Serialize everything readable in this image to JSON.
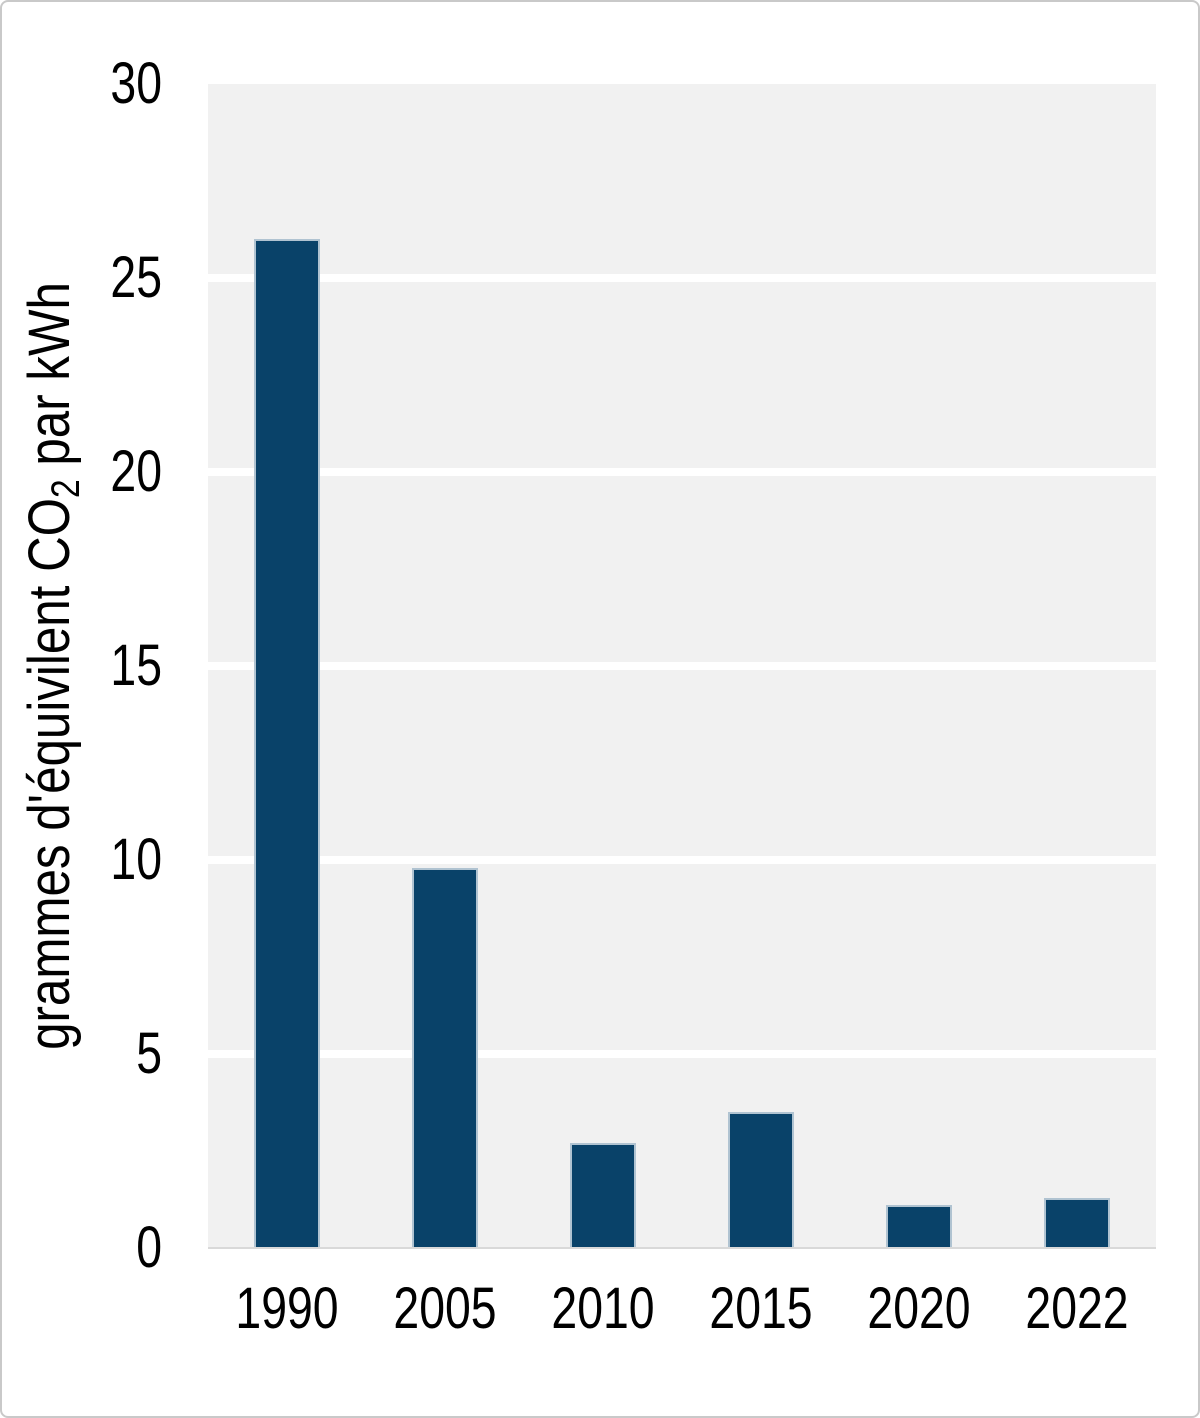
{
  "frame": {
    "background": "#ffffff",
    "border_color": "#c9c9c9"
  },
  "chart_data": {
    "type": "bar",
    "categories": [
      "1990",
      "2005",
      "2010",
      "2015",
      "2020",
      "2022"
    ],
    "values": [
      26,
      9.8,
      2.7,
      3.5,
      1.1,
      1.3
    ],
    "title": "",
    "xlabel": "",
    "ylabel": "grammes d'équivilent CO2 par kWh",
    "ylabel_parts": {
      "prefix": "grammes d'équivilent CO",
      "subscript": "2",
      "suffix": " par kWh"
    },
    "ylim": [
      0,
      30
    ],
    "yticks": [
      0,
      5,
      10,
      15,
      20,
      25,
      30
    ],
    "grid": true,
    "legend": false,
    "bar_color": "#094269",
    "bar_border_color": "#b0c3d1",
    "plot_background": "#f1f1f1",
    "gridline_color": "#ffffff",
    "baseline_color": "#d9d9d9",
    "text_color": "#000000"
  }
}
